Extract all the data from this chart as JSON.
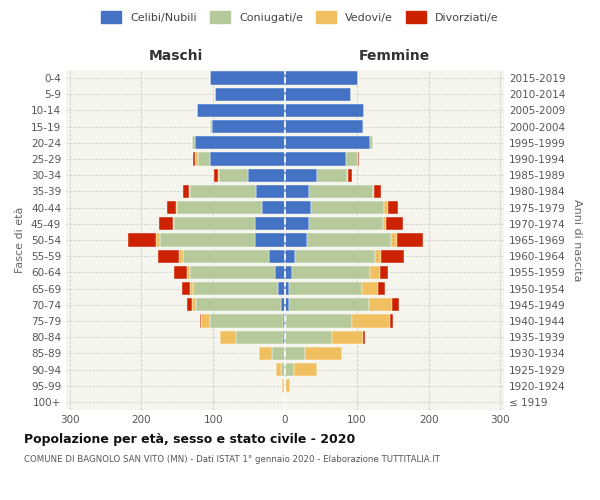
{
  "age_groups": [
    "100+",
    "95-99",
    "90-94",
    "85-89",
    "80-84",
    "75-79",
    "70-74",
    "65-69",
    "60-64",
    "55-59",
    "50-54",
    "45-49",
    "40-44",
    "35-39",
    "30-34",
    "25-29",
    "20-24",
    "15-19",
    "10-14",
    "5-9",
    "0-4"
  ],
  "birth_years": [
    "≤ 1919",
    "1920-1924",
    "1925-1929",
    "1930-1934",
    "1935-1939",
    "1940-1944",
    "1945-1949",
    "1950-1954",
    "1955-1959",
    "1960-1964",
    "1965-1969",
    "1970-1974",
    "1975-1979",
    "1980-1984",
    "1985-1989",
    "1990-1994",
    "1995-1999",
    "2000-2004",
    "2005-2009",
    "2010-2014",
    "2015-2019"
  ],
  "maschi_celibi": [
    0,
    0,
    0,
    0,
    3,
    3,
    6,
    10,
    14,
    22,
    42,
    42,
    32,
    40,
    52,
    105,
    125,
    102,
    122,
    98,
    105
  ],
  "maschi_coniugati": [
    0,
    2,
    5,
    18,
    65,
    102,
    118,
    118,
    118,
    120,
    132,
    112,
    118,
    92,
    40,
    16,
    5,
    2,
    0,
    0,
    0
  ],
  "maschi_vedovi": [
    0,
    2,
    8,
    18,
    22,
    12,
    5,
    5,
    5,
    5,
    5,
    2,
    2,
    2,
    2,
    5,
    0,
    0,
    0,
    0,
    0
  ],
  "maschi_divorziati": [
    0,
    0,
    0,
    0,
    0,
    2,
    8,
    10,
    18,
    30,
    40,
    20,
    12,
    8,
    5,
    2,
    0,
    0,
    0,
    0,
    0
  ],
  "femmine_nubili": [
    0,
    0,
    0,
    0,
    0,
    2,
    5,
    5,
    10,
    14,
    30,
    34,
    36,
    34,
    44,
    85,
    118,
    108,
    110,
    92,
    102
  ],
  "femmine_coniugate": [
    0,
    2,
    12,
    28,
    65,
    92,
    112,
    102,
    108,
    112,
    118,
    102,
    102,
    88,
    42,
    16,
    5,
    2,
    0,
    0,
    0
  ],
  "femmine_vedove": [
    2,
    5,
    32,
    52,
    44,
    52,
    32,
    22,
    14,
    8,
    8,
    5,
    5,
    2,
    2,
    0,
    0,
    0,
    0,
    0,
    0
  ],
  "femmine_divorziate": [
    0,
    0,
    0,
    0,
    2,
    5,
    10,
    10,
    12,
    32,
    36,
    24,
    14,
    10,
    5,
    2,
    0,
    0,
    0,
    0,
    0
  ],
  "color_celibi": "#4472C4",
  "color_coniugati": "#b5c99a",
  "color_vedovi": "#f0c060",
  "color_divorziati": "#cc2200",
  "xlim": 305,
  "title": "Popolazione per età, sesso e stato civile - 2020",
  "subtitle": "COMUNE DI BAGNOLO SAN VITO (MN) - Dati ISTAT 1° gennaio 2020 - Elaborazione TUTTITALIA.IT",
  "ylabel_left": "Fasce di età",
  "ylabel_right": "Anni di nascita",
  "maschi_label": "Maschi",
  "femmine_label": "Femmine",
  "legend_labels": [
    "Celibi/Nubili",
    "Coniugati/e",
    "Vedovi/e",
    "Divorziati/e"
  ],
  "bg_color": "#ffffff",
  "ax_bg_color": "#f5f5ee"
}
